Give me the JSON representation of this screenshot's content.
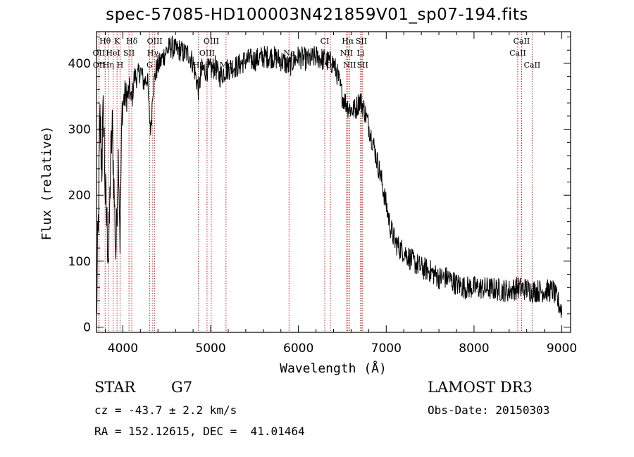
{
  "header": {
    "title": "spec-57085-HD100003N421859V01_sp07-194.fits"
  },
  "info": {
    "object_class": "STAR",
    "subclass": "G7",
    "survey": "LAMOST DR3",
    "cz": "cz = -43.7 ± 2.2 km/s",
    "obs_date": "Obs-Date: 20150303",
    "coords": "RA = 152.12615, DEC =  41.01464"
  },
  "chart_data": {
    "type": "line",
    "title": "spec-57085-HD100003N421859V01_sp07-194.fits",
    "xlabel": "Wavelength (Å)",
    "ylabel": "Flux (relative)",
    "xlim": [
      3700,
      9100
    ],
    "ylim": [
      -8,
      448
    ],
    "x_ticks": [
      4000,
      5000,
      6000,
      7000,
      8000,
      9000
    ],
    "y_ticks": [
      0,
      100,
      200,
      300,
      400
    ],
    "grid": false,
    "line_color": "#000000",
    "marker_color": "#b22222",
    "spectrum_anchors": {
      "wavelength": [
        3700,
        3720,
        3740,
        3760,
        3780,
        3800,
        3820,
        3840,
        3860,
        3880,
        3900,
        3920,
        3933,
        3950,
        3968,
        3990,
        4020,
        4050,
        4080,
        4101,
        4130,
        4170,
        4200,
        4240,
        4280,
        4300,
        4320,
        4340,
        4380,
        4420,
        4460,
        4500,
        4550,
        4600,
        4650,
        4700,
        4750,
        4800,
        4861,
        4900,
        4950,
        5000,
        5050,
        5100,
        5175,
        5250,
        5300,
        5400,
        5500,
        5600,
        5700,
        5800,
        5893,
        5950,
        6000,
        6100,
        6200,
        6300,
        6400,
        6450,
        6500,
        6563,
        6600,
        6650,
        6700,
        6750,
        6800,
        6850,
        6900,
        6950,
        7000,
        7050,
        7100,
        7150,
        7200,
        7300,
        7400,
        7500,
        7600,
        7700,
        7800,
        7900,
        8000,
        8200,
        8400,
        8498,
        8542,
        8600,
        8662,
        8700,
        8800,
        8900,
        8950,
        9000
      ],
      "flux": [
        20,
        150,
        310,
        250,
        330,
        200,
        150,
        100,
        250,
        300,
        210,
        110,
        170,
        270,
        130,
        330,
        350,
        350,
        360,
        340,
        380,
        380,
        390,
        370,
        380,
        320,
        300,
        360,
        390,
        400,
        410,
        420,
        425,
        420,
        420,
        415,
        415,
        400,
        360,
        390,
        390,
        390,
        395,
        380,
        390,
        395,
        395,
        405,
        405,
        410,
        410,
        405,
        395,
        405,
        410,
        405,
        410,
        405,
        400,
        380,
        350,
        335,
        330,
        330,
        345,
        330,
        305,
        280,
        250,
        220,
        185,
        150,
        130,
        120,
        115,
        100,
        90,
        85,
        75,
        75,
        65,
        60,
        60,
        58,
        55,
        60,
        58,
        58,
        55,
        55,
        55,
        55,
        40,
        25
      ],
      "noise_amplitude": 18,
      "blue_end_extra_noise": 45
    },
    "line_markers": [
      {
        "label": "Hθ",
        "wavelength": 3798,
        "row": 0
      },
      {
        "label": "K",
        "wavelength": 3934,
        "row": 0
      },
      {
        "label": "Hδ",
        "wavelength": 4102,
        "row": 0
      },
      {
        "label": "OIII",
        "wavelength": 4363,
        "row": 0
      },
      {
        "label": "OIII",
        "wavelength": 5007,
        "row": 0
      },
      {
        "label": "CI",
        "wavelength": 6300,
        "row": 0
      },
      {
        "label": "Hα",
        "wavelength": 6563,
        "row": 0
      },
      {
        "label": "SII",
        "wavelength": 6717,
        "row": 0
      },
      {
        "label": "CaII",
        "wavelength": 8542,
        "row": 0
      },
      {
        "label": "OII",
        "wavelength": 3727,
        "row": 1
      },
      {
        "label": "HeI",
        "wavelength": 3889,
        "row": 1
      },
      {
        "label": "SII",
        "wavelength": 4070,
        "row": 1
      },
      {
        "label": "Hγ",
        "wavelength": 4341,
        "row": 1
      },
      {
        "label": "OIII",
        "wavelength": 4959,
        "row": 1
      },
      {
        "label": "Na",
        "wavelength": 5893,
        "row": 1
      },
      {
        "label": "NII",
        "wavelength": 6548,
        "row": 1
      },
      {
        "label": "Li",
        "wavelength": 6708,
        "row": 1
      },
      {
        "label": "CaII",
        "wavelength": 8498,
        "row": 1
      },
      {
        "label": "OII",
        "wavelength": 3729,
        "row": 2
      },
      {
        "label": "Hη",
        "wavelength": 3835,
        "row": 2
      },
      {
        "label": "H",
        "wavelength": 3968,
        "row": 2
      },
      {
        "label": "G",
        "wavelength": 4305,
        "row": 2
      },
      {
        "label": "Hβ",
        "wavelength": 4861,
        "row": 2
      },
      {
        "label": "Mg",
        "wavelength": 5175,
        "row": 2
      },
      {
        "label": "OI",
        "wavelength": 6364,
        "row": 2
      },
      {
        "label": "NII",
        "wavelength": 6583,
        "row": 2
      },
      {
        "label": "SII",
        "wavelength": 6731,
        "row": 2
      },
      {
        "label": "CaII",
        "wavelength": 8662,
        "row": 2
      }
    ]
  }
}
